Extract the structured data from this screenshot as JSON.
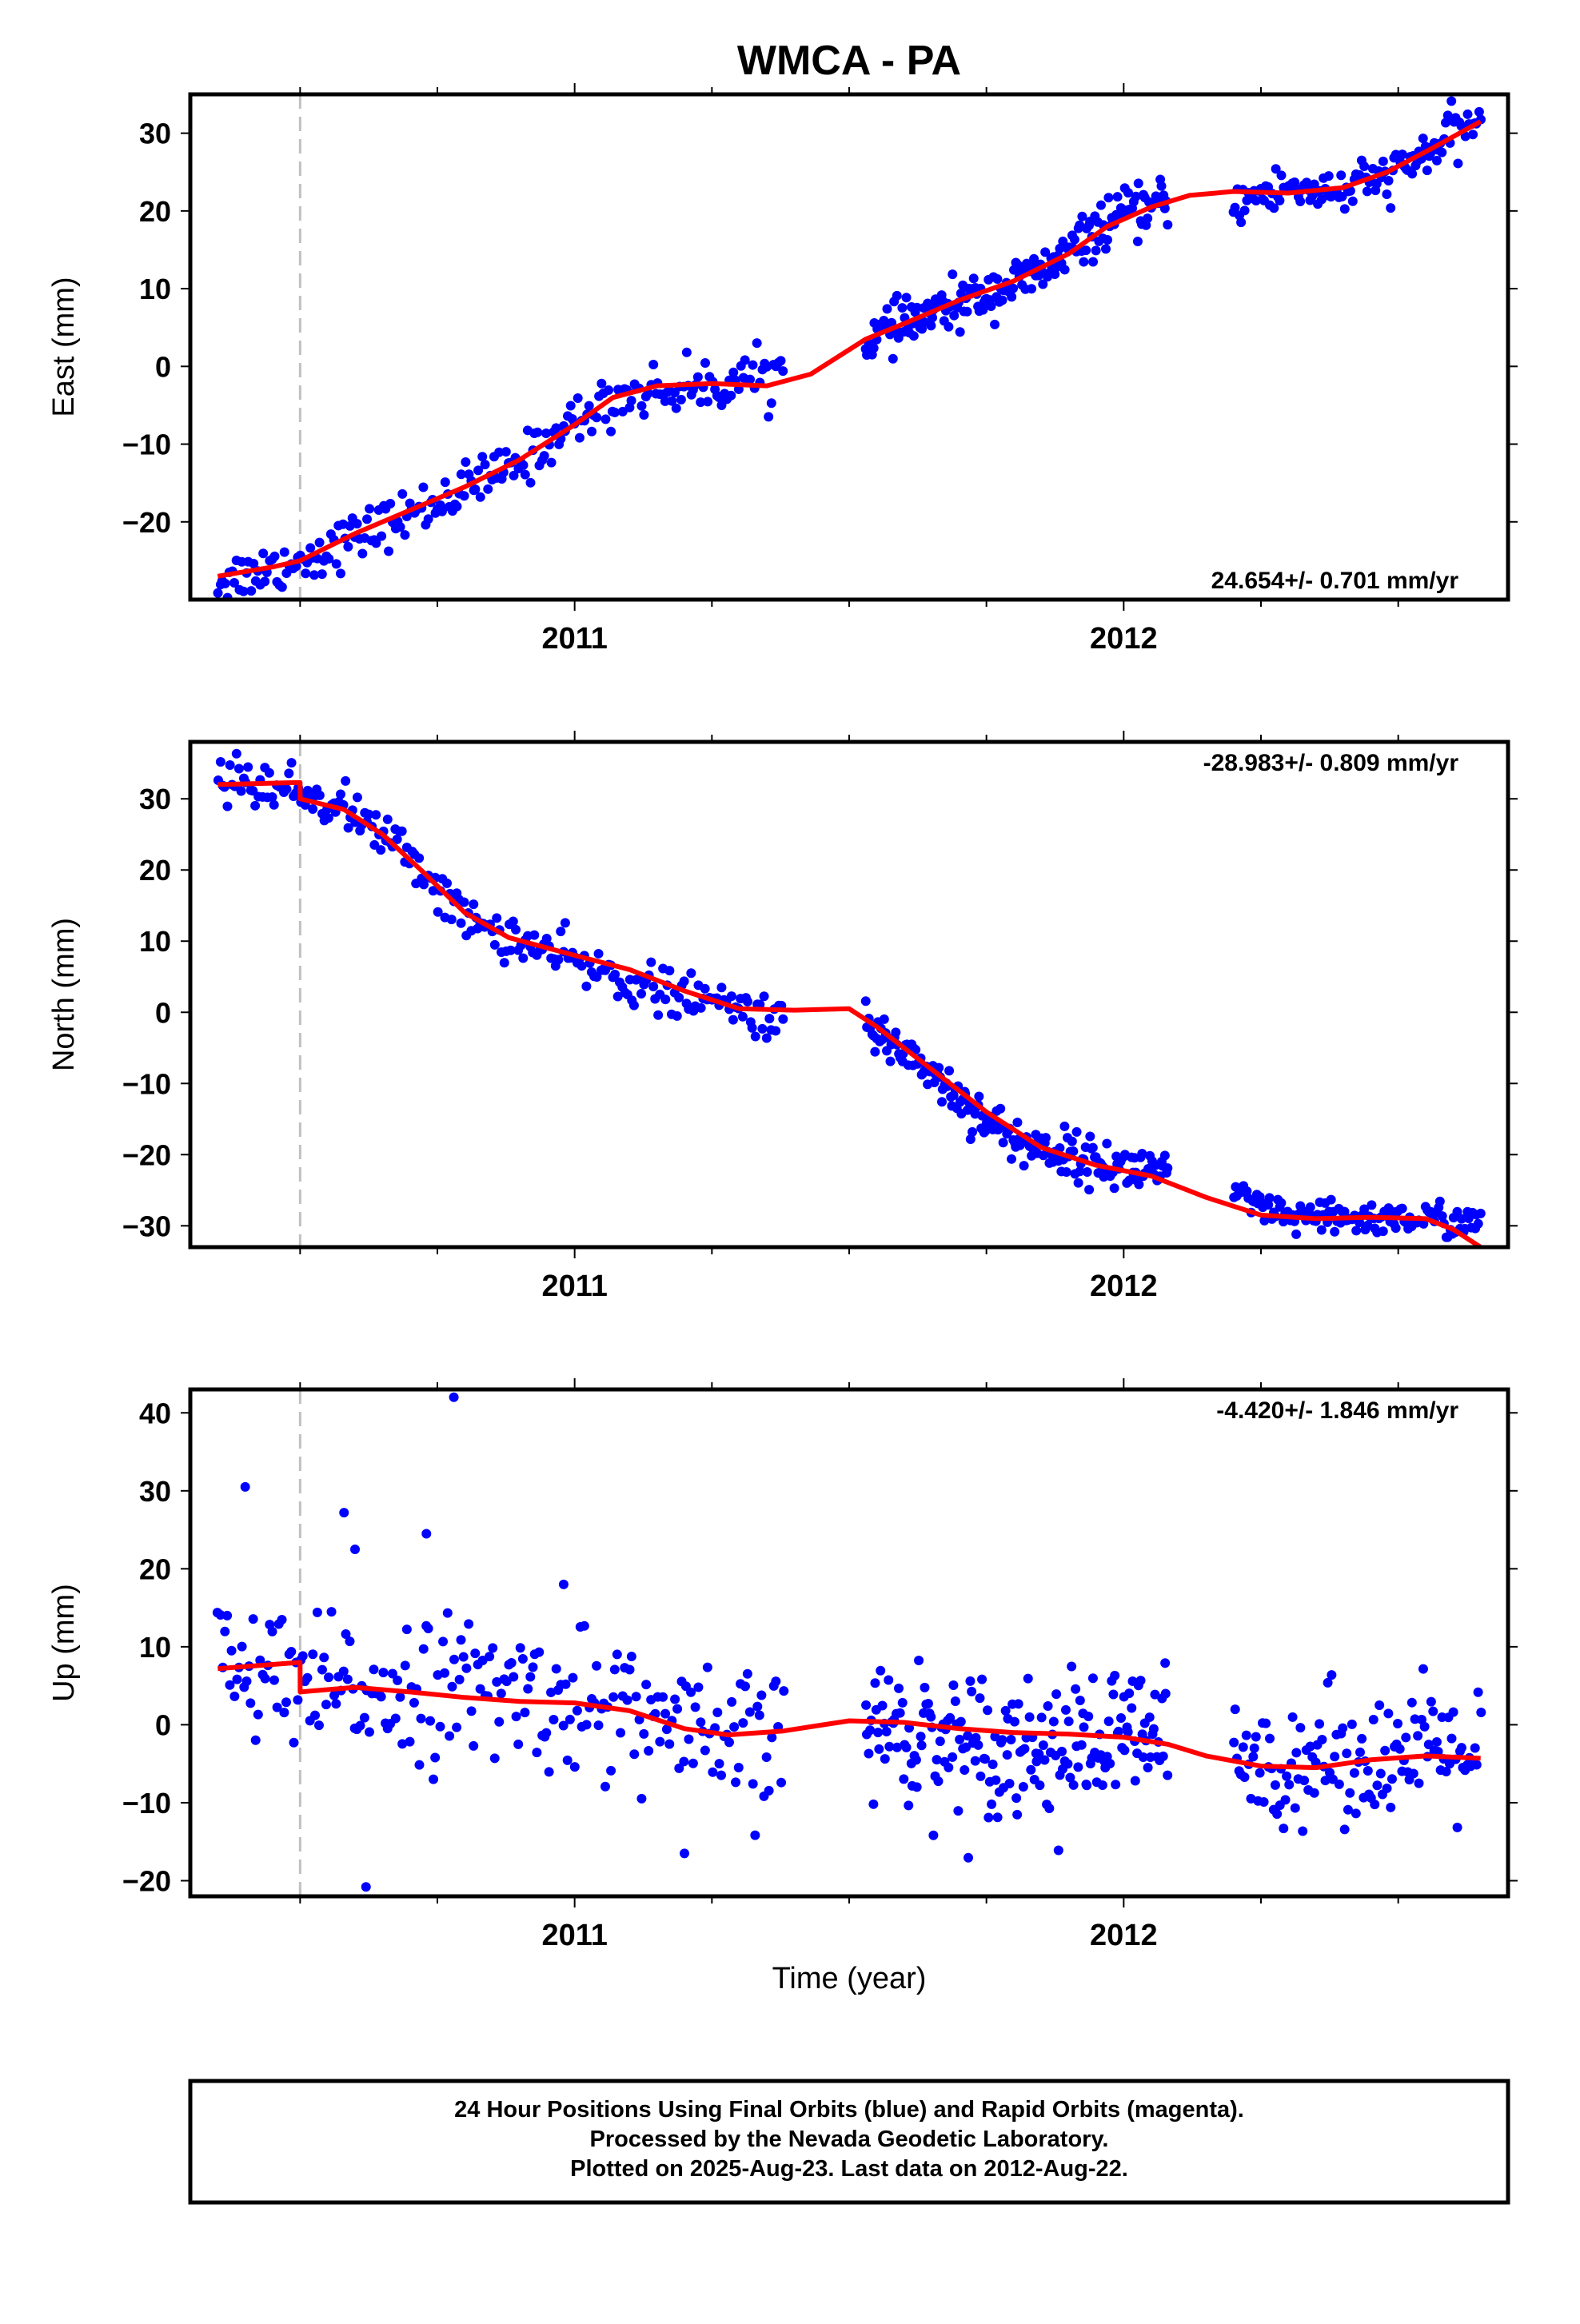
{
  "title": "WMCA - PA",
  "x_axis_label": "Time (year)",
  "footer": {
    "line1": "24 Hour Positions Using Final Orbits (blue) and Rapid Orbits (magenta).",
    "line2": "Processed by the Nevada Geodetic Laboratory.",
    "line3": "Plotted on 2025-Aug-23. Last data on 2012-Aug-22."
  },
  "colors": {
    "final_orbits": "#0000ff",
    "model": "#ff0000",
    "equipment_change": "#c0c0c0",
    "frame": "#000000"
  },
  "chart_data": [
    {
      "type": "scatter",
      "ylabel": "East (mm)",
      "rate_text": "24.654+/- 0.701 mm/yr",
      "xlim": [
        2010.3,
        2012.7
      ],
      "ylim": [
        -30,
        35
      ],
      "yticks": [
        -20,
        -10,
        0,
        10,
        20,
        30
      ],
      "xticks": [
        "2011",
        "2012"
      ],
      "xtick_values": [
        2011,
        2012
      ],
      "equipment_change_epoch": 2010.5,
      "model_trend_per_year": 24.654,
      "series_final_orbits_segments": [
        {
          "t_start": 2010.35,
          "t_end": 2011.38,
          "n": 240,
          "trend": [
            [
              2010.35,
              -27.5
            ],
            [
              2010.5,
              -25
            ],
            [
              2010.7,
              -19
            ],
            [
              2010.9,
              -12.5
            ],
            [
              2011.0,
              -7
            ],
            [
              2011.1,
              -3.5
            ],
            [
              2011.25,
              -2.5
            ],
            [
              2011.38,
              -0.5
            ]
          ],
          "scatter": 1.6
        },
        {
          "t_start": 2011.53,
          "t_end": 2012.08,
          "n": 200,
          "trend": [
            [
              2011.53,
              3.5
            ],
            [
              2011.7,
              8
            ],
            [
              2011.85,
              12
            ],
            [
              2011.98,
              19
            ],
            [
              2012.08,
              21
            ]
          ],
          "scatter": 1.5
        },
        {
          "t_start": 2012.2,
          "t_end": 2012.65,
          "n": 130,
          "trend": [
            [
              2012.2,
              21
            ],
            [
              2012.3,
              23
            ],
            [
              2012.4,
              22.5
            ],
            [
              2012.5,
              25
            ],
            [
              2012.65,
              32
            ]
          ],
          "scatter": 1.5
        }
      ],
      "model_curve": [
        [
          2010.35,
          -27
        ],
        [
          2010.45,
          -25.8
        ],
        [
          2010.5,
          -25
        ],
        [
          2010.6,
          -21.5
        ],
        [
          2010.7,
          -18.5
        ],
        [
          2010.8,
          -15.5
        ],
        [
          2010.9,
          -12
        ],
        [
          2011.0,
          -7.5
        ],
        [
          2011.07,
          -4
        ],
        [
          2011.15,
          -2.5
        ],
        [
          2011.25,
          -2.2
        ],
        [
          2011.35,
          -2.5
        ],
        [
          2011.43,
          -1
        ],
        [
          2011.53,
          3.5
        ],
        [
          2011.6,
          5.5
        ],
        [
          2011.7,
          8.5
        ],
        [
          2011.8,
          11
        ],
        [
          2011.9,
          14.5
        ],
        [
          2011.97,
          18
        ],
        [
          2012.05,
          20.5
        ],
        [
          2012.12,
          22
        ],
        [
          2012.2,
          22.5
        ],
        [
          2012.3,
          22.3
        ],
        [
          2012.4,
          23
        ],
        [
          2012.48,
          25
        ],
        [
          2012.56,
          28
        ],
        [
          2012.65,
          31.5
        ]
      ]
    },
    {
      "type": "scatter",
      "ylabel": "North (mm)",
      "rate_text": "-28.983+/- 0.809 mm/yr",
      "xlim": [
        2010.3,
        2012.7
      ],
      "ylim": [
        -33,
        38
      ],
      "yticks": [
        -30,
        -20,
        -10,
        0,
        10,
        20,
        30
      ],
      "xticks": [
        "2011",
        "2012"
      ],
      "xtick_values": [
        2011,
        2012
      ],
      "equipment_change_epoch": 2010.5,
      "model_trend_per_year": -28.983,
      "series_final_orbits_segments": [
        {
          "t_start": 2010.35,
          "t_end": 2011.38,
          "n": 240,
          "trend": [
            [
              2010.35,
              33
            ],
            [
              2010.5,
              31
            ],
            [
              2010.6,
              28
            ],
            [
              2010.7,
              22
            ],
            [
              2010.8,
              13
            ],
            [
              2010.9,
              10
            ],
            [
              2011.0,
              7
            ],
            [
              2011.15,
              3
            ],
            [
              2011.3,
              0.5
            ],
            [
              2011.38,
              -1
            ]
          ],
          "scatter": 1.6
        },
        {
          "t_start": 2011.53,
          "t_end": 2012.08,
          "n": 200,
          "trend": [
            [
              2011.53,
              -2.5
            ],
            [
              2011.6,
              -5
            ],
            [
              2011.7,
              -12
            ],
            [
              2011.8,
              -18
            ],
            [
              2011.9,
              -20
            ],
            [
              2012.0,
              -22
            ],
            [
              2012.08,
              -22
            ]
          ],
          "scatter": 1.6
        },
        {
          "t_start": 2012.2,
          "t_end": 2012.65,
          "n": 130,
          "trend": [
            [
              2012.2,
              -26
            ],
            [
              2012.3,
              -29
            ],
            [
              2012.4,
              -29
            ],
            [
              2012.55,
              -29
            ],
            [
              2012.65,
              -29.5
            ]
          ],
          "scatter": 1.2
        }
      ],
      "model_curve": [
        [
          2010.35,
          32
        ],
        [
          2010.4999,
          32.3
        ],
        [
          2010.5001,
          30
        ],
        [
          2010.58,
          28.5
        ],
        [
          2010.65,
          25
        ],
        [
          2010.72,
          20
        ],
        [
          2010.8,
          14
        ],
        [
          2010.88,
          10.5
        ],
        [
          2011.0,
          8
        ],
        [
          2011.1,
          6
        ],
        [
          2011.2,
          3
        ],
        [
          2011.3,
          0.5
        ],
        [
          2011.4,
          0.3
        ],
        [
          2011.5,
          0.5
        ],
        [
          2011.55,
          -2
        ],
        [
          2011.65,
          -8
        ],
        [
          2011.75,
          -14
        ],
        [
          2011.85,
          -19
        ],
        [
          2011.95,
          -21.5
        ],
        [
          2012.05,
          -23
        ],
        [
          2012.15,
          -26
        ],
        [
          2012.25,
          -28.5
        ],
        [
          2012.35,
          -29
        ],
        [
          2012.45,
          -28.8
        ],
        [
          2012.55,
          -29
        ],
        [
          2012.6,
          -30.5
        ],
        [
          2012.65,
          -33
        ]
      ]
    },
    {
      "type": "scatter",
      "ylabel": "Up (mm)",
      "rate_text": "-4.420+/- 1.846 mm/yr",
      "xlim": [
        2010.3,
        2012.7
      ],
      "ylim": [
        -22,
        43
      ],
      "yticks": [
        -20,
        -10,
        0,
        10,
        20,
        30,
        40
      ],
      "xticks": [
        "2011",
        "2012"
      ],
      "xtick_values": [
        2011,
        2012
      ],
      "equipment_change_epoch": 2010.5,
      "model_trend_per_year": -4.42,
      "series_final_orbits_segments": [
        {
          "t_start": 2010.35,
          "t_end": 2011.38,
          "n": 240,
          "trend": [
            [
              2010.35,
              8
            ],
            [
              2010.5,
              4
            ],
            [
              2010.7,
              5
            ],
            [
              2010.9,
              4
            ],
            [
              2011.1,
              2
            ],
            [
              2011.25,
              -3
            ],
            [
              2011.38,
              -2
            ]
          ],
          "scatter": 4.5
        },
        {
          "t_start": 2011.53,
          "t_end": 2012.08,
          "n": 200,
          "trend": [
            [
              2011.53,
              0
            ],
            [
              2011.7,
              -2
            ],
            [
              2011.9,
              -3
            ],
            [
              2012.08,
              -1
            ]
          ],
          "scatter": 4.5
        },
        {
          "t_start": 2012.2,
          "t_end": 2012.65,
          "n": 130,
          "trend": [
            [
              2012.2,
              -6
            ],
            [
              2012.35,
              -4
            ],
            [
              2012.5,
              -4
            ],
            [
              2012.65,
              -3
            ]
          ],
          "scatter": 4.0
        }
      ],
      "outliers": [
        [
          2010.4,
          30.5
        ],
        [
          2010.78,
          42
        ],
        [
          2010.62,
          -20.8
        ],
        [
          2010.58,
          27.2
        ],
        [
          2010.73,
          24.5
        ],
        [
          2011.2,
          -16.5
        ],
        [
          2010.6,
          22.5
        ],
        [
          2010.98,
          18
        ]
      ],
      "model_curve": [
        [
          2010.35,
          7.2
        ],
        [
          2010.4999,
          8
        ],
        [
          2010.5001,
          4.2
        ],
        [
          2010.6,
          4.8
        ],
        [
          2010.7,
          4.2
        ],
        [
          2010.8,
          3.5
        ],
        [
          2010.9,
          3
        ],
        [
          2011.0,
          2.8
        ],
        [
          2011.1,
          1.8
        ],
        [
          2011.2,
          -0.5
        ],
        [
          2011.28,
          -1.3
        ],
        [
          2011.38,
          -0.8
        ],
        [
          2011.5,
          0.5
        ],
        [
          2011.6,
          0.3
        ],
        [
          2011.7,
          -0.5
        ],
        [
          2011.8,
          -1
        ],
        [
          2011.9,
          -1.2
        ],
        [
          2012.0,
          -1.6
        ],
        [
          2012.08,
          -2.5
        ],
        [
          2012.15,
          -4
        ],
        [
          2012.25,
          -5.3
        ],
        [
          2012.35,
          -5.5
        ],
        [
          2012.45,
          -4.5
        ],
        [
          2012.55,
          -4
        ],
        [
          2012.65,
          -4.3
        ]
      ]
    }
  ]
}
